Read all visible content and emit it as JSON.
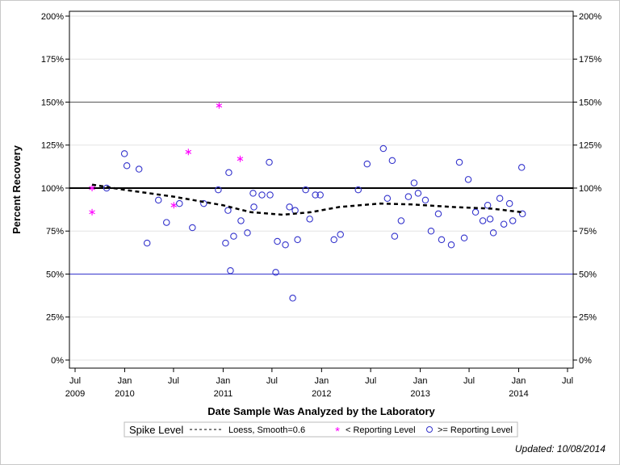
{
  "chart_data": {
    "type": "scatter",
    "title": "",
    "xlabel": "Date Sample Was Analyzed by the Laboratory",
    "ylabel": "Percent Recovery",
    "ylim": [
      -4.7,
      202.8
    ],
    "xlim": [
      "2009-06-10",
      "2014-07-22"
    ],
    "grid": true,
    "y_ticks": [
      0,
      25,
      50,
      75,
      100,
      125,
      150,
      175,
      200
    ],
    "y_tick_labels": [
      "0%",
      "25%",
      "50%",
      "75%",
      "100%",
      "125%",
      "150%",
      "175%",
      "200%"
    ],
    "x_ticks": [
      {
        "date": "2009-07-01",
        "month": "Jul",
        "year": "2009"
      },
      {
        "date": "2010-01-01",
        "month": "Jan",
        "year": "2010"
      },
      {
        "date": "2010-07-01",
        "month": "Jul",
        "year": ""
      },
      {
        "date": "2011-01-01",
        "month": "Jan",
        "year": "2011"
      },
      {
        "date": "2011-07-01",
        "month": "Jul",
        "year": ""
      },
      {
        "date": "2012-01-01",
        "month": "Jan",
        "year": "2012"
      },
      {
        "date": "2012-07-01",
        "month": "Jul",
        "year": ""
      },
      {
        "date": "2013-01-01",
        "month": "Jan",
        "year": "2013"
      },
      {
        "date": "2013-07-01",
        "month": "Jul",
        "year": ""
      },
      {
        "date": "2014-01-01",
        "month": "Jan",
        "year": "2014"
      },
      {
        "date": "2014-07-01",
        "month": "Jul",
        "year": ""
      }
    ],
    "reference_lines": [
      {
        "value": 150,
        "color": "#555555"
      },
      {
        "value": 100,
        "color": "#000000",
        "label": "Spike Level"
      },
      {
        "value": 50,
        "color": "#3333cc"
      }
    ],
    "series": [
      {
        "name": "< Reporting Level",
        "marker": "asterisk",
        "color": "#ff00ff",
        "points": [
          [
            "2009-09-02",
            100
          ],
          [
            "2009-09-02",
            86
          ],
          [
            "2010-07-02",
            90
          ],
          [
            "2010-08-25",
            121
          ],
          [
            "2010-12-17",
            148
          ],
          [
            "2011-03-05",
            117
          ]
        ]
      },
      {
        "name": ">= Reporting Level",
        "marker": "circle",
        "color": "#3333cc",
        "points": [
          [
            "2009-10-26",
            100
          ],
          [
            "2009-12-31",
            120
          ],
          [
            "2010-01-09",
            113
          ],
          [
            "2010-02-23",
            111
          ],
          [
            "2010-03-25",
            68
          ],
          [
            "2010-05-06",
            93
          ],
          [
            "2010-06-05",
            80
          ],
          [
            "2010-07-23",
            91
          ],
          [
            "2010-09-09",
            77
          ],
          [
            "2010-10-21",
            91
          ],
          [
            "2010-12-14",
            99
          ],
          [
            "2011-01-22",
            109
          ],
          [
            "2011-01-19",
            87
          ],
          [
            "2011-01-10",
            68
          ],
          [
            "2011-01-28",
            52
          ],
          [
            "2011-02-09",
            72
          ],
          [
            "2011-03-08",
            81
          ],
          [
            "2011-04-01",
            74
          ],
          [
            "2011-04-22",
            97
          ],
          [
            "2011-04-25",
            89
          ],
          [
            "2011-05-25",
            96
          ],
          [
            "2011-06-21",
            115
          ],
          [
            "2011-06-24",
            96
          ],
          [
            "2011-07-21",
            69
          ],
          [
            "2011-07-15",
            51
          ],
          [
            "2011-08-20",
            67
          ],
          [
            "2011-09-04",
            89
          ],
          [
            "2011-09-16",
            36
          ],
          [
            "2011-09-25",
            87
          ],
          [
            "2011-10-04",
            70
          ],
          [
            "2011-11-03",
            99
          ],
          [
            "2011-11-18",
            82
          ],
          [
            "2011-12-09",
            96
          ],
          [
            "2011-12-27",
            96
          ],
          [
            "2012-02-16",
            70
          ],
          [
            "2012-03-11",
            73
          ],
          [
            "2012-05-16",
            99
          ],
          [
            "2012-06-18",
            114
          ],
          [
            "2012-08-17",
            123
          ],
          [
            "2012-09-01",
            94
          ],
          [
            "2012-09-19",
            116
          ],
          [
            "2012-09-28",
            72
          ],
          [
            "2012-10-22",
            81
          ],
          [
            "2012-11-18",
            95
          ],
          [
            "2012-12-09",
            103
          ],
          [
            "2012-12-24",
            97
          ],
          [
            "2013-01-20",
            93
          ],
          [
            "2013-02-10",
            75
          ],
          [
            "2013-03-09",
            85
          ],
          [
            "2013-03-21",
            70
          ],
          [
            "2013-04-26",
            67
          ],
          [
            "2013-05-26",
            115
          ],
          [
            "2013-06-13",
            71
          ],
          [
            "2013-06-28",
            105
          ],
          [
            "2013-07-25",
            86
          ],
          [
            "2013-08-21",
            81
          ],
          [
            "2013-09-08",
            90
          ],
          [
            "2013-09-17",
            82
          ],
          [
            "2013-09-29",
            74
          ],
          [
            "2013-10-23",
            94
          ],
          [
            "2013-11-07",
            79
          ],
          [
            "2013-11-28",
            91
          ],
          [
            "2013-12-10",
            81
          ],
          [
            "2014-01-12",
            112
          ],
          [
            "2014-01-15",
            85
          ]
        ]
      },
      {
        "name": "Loess, Smooth=0.6",
        "marker": "dashed-line",
        "color": "#000000",
        "points": [
          [
            "2009-09-02",
            102
          ],
          [
            "2009-12-31",
            99
          ],
          [
            "2010-07-02",
            95
          ],
          [
            "2011-01-01",
            90
          ],
          [
            "2011-04-13",
            86
          ],
          [
            "2011-08-10",
            84.5
          ],
          [
            "2011-11-23",
            86
          ],
          [
            "2012-03-07",
            89
          ],
          [
            "2012-08-04",
            91
          ],
          [
            "2012-12-01",
            90.5
          ],
          [
            "2013-04-30",
            89
          ],
          [
            "2013-09-26",
            88
          ],
          [
            "2014-01-12",
            86
          ]
        ]
      }
    ],
    "legend": {
      "placement": "bottom",
      "entries": [
        "Spike Level",
        "Loess, Smooth=0.6",
        "< Reporting Level",
        ">= Reporting Level"
      ]
    }
  },
  "footer": {
    "updated": "Updated: 10/08/2014"
  }
}
